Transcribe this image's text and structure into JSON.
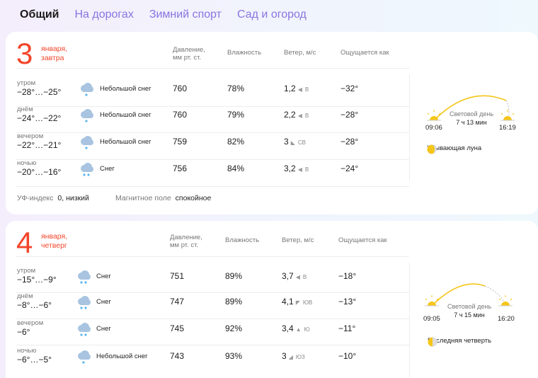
{
  "tabs": [
    {
      "label": "Общий",
      "active": true
    },
    {
      "label": "На дорогах",
      "active": false
    },
    {
      "label": "Зимний спорт",
      "active": false
    },
    {
      "label": "Сад и огород",
      "active": false
    }
  ],
  "days": [
    {
      "number": "3",
      "label_line1": "января,",
      "label_line2": "завтра",
      "headers": {
        "pressure_line1": "Давление,",
        "pressure_line2": "мм рт. ст.",
        "humidity": "Влажность",
        "wind": "Ветер, м/с",
        "feels": "Ощущается как"
      },
      "rows": [
        {
          "tod": "утром",
          "temp": "−28°…−25°",
          "cond": "Небольшой снег",
          "icon": "light-snow-icon",
          "pressure": "760",
          "humidity": "78%",
          "wind": "1,2",
          "wind_dir": "В",
          "feels": "−32°"
        },
        {
          "tod": "днём",
          "temp": "−24°…−22°",
          "cond": "Небольшой снег",
          "icon": "light-snow-icon",
          "pressure": "760",
          "humidity": "79%",
          "wind": "2,2",
          "wind_dir": "В",
          "feels": "−28°"
        },
        {
          "tod": "вечером",
          "temp": "−22°…−21°",
          "cond": "Небольшой снег",
          "icon": "light-snow-icon",
          "pressure": "759",
          "humidity": "82%",
          "wind": "3",
          "wind_dir": "СВ",
          "feels": "−28°"
        },
        {
          "tod": "ночью",
          "temp": "−20°…−16°",
          "cond": "Снег",
          "icon": "snow-icon",
          "pressure": "756",
          "humidity": "84%",
          "wind": "3,2",
          "wind_dir": "В",
          "feels": "−24°"
        }
      ],
      "uv_label": "УФ-индекс",
      "uv_value": "0, низкий",
      "magnetic_label": "Магнитное поле",
      "magnetic_value": "спокойное",
      "sunrise": "09:06",
      "sunset": "16:19",
      "daylight_label": "Световой день",
      "daylight_value": "7 ч 13 мин",
      "moon": "Убывающая луна"
    },
    {
      "number": "4",
      "label_line1": "января,",
      "label_line2": "четверг",
      "headers": {
        "pressure_line1": "Давление,",
        "pressure_line2": "мм рт. ст.",
        "humidity": "Влажность",
        "wind": "Ветер, м/с",
        "feels": "Ощущается как"
      },
      "rows": [
        {
          "tod": "утром",
          "temp": "−15°…−9°",
          "cond": "Снег",
          "icon": "snow-icon",
          "pressure": "751",
          "humidity": "89%",
          "wind": "3,7",
          "wind_dir": "В",
          "feels": "−18°"
        },
        {
          "tod": "днём",
          "temp": "−8°…−6°",
          "cond": "Снег",
          "icon": "snow-icon",
          "pressure": "747",
          "humidity": "89%",
          "wind": "4,1",
          "wind_dir": "ЮВ",
          "feels": "−13°"
        },
        {
          "tod": "вечером",
          "temp": "−6°",
          "cond": "Снег",
          "icon": "snow-icon",
          "pressure": "745",
          "humidity": "92%",
          "wind": "3,4",
          "wind_dir": "Ю",
          "feels": "−11°"
        },
        {
          "tod": "ночью",
          "temp": "−6°…−5°",
          "cond": "Небольшой снег",
          "icon": "light-snow-icon",
          "pressure": "743",
          "humidity": "93%",
          "wind": "3",
          "wind_dir": "ЮЗ",
          "feels": "−10°"
        }
      ],
      "sunrise": "09:05",
      "sunset": "16:20",
      "daylight_label": "Световой день",
      "daylight_value": "7 ч 15 мин",
      "moon": "Последняя четверть"
    }
  ],
  "colors": {
    "accent_date": "#f2462b",
    "tab_inactive": "#8a74e0",
    "sun": "#f5c518",
    "cloud": "#a8c4e0"
  }
}
